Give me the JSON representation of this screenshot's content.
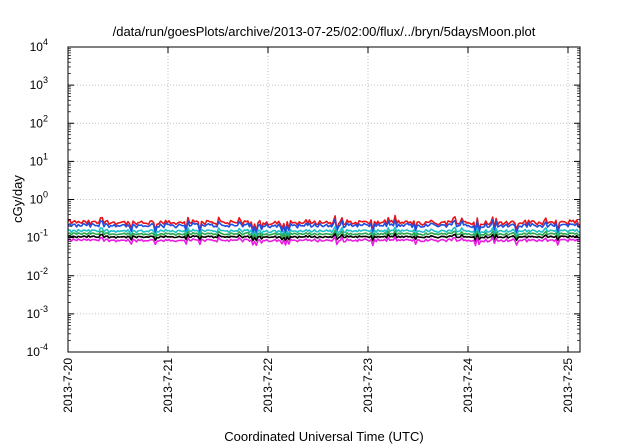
{
  "chart_data": {
    "type": "line",
    "title": "/data/run/goesPlots/archive/2013-07-25/02:00/flux/../bryn/5daysMoon.plot",
    "xlabel": "Coordinated Universal Time (UTC)",
    "ylabel": "cGy/day",
    "yscale": "log",
    "ylim": [
      0.0001,
      10000
    ],
    "xlim": [
      0,
      5.12
    ],
    "grid": true,
    "x_ticks": [
      {
        "value": 0,
        "label": "2013-7-20"
      },
      {
        "value": 1,
        "label": "2013-7-21"
      },
      {
        "value": 2,
        "label": "2013-7-22"
      },
      {
        "value": 3,
        "label": "2013-7-23"
      },
      {
        "value": 4,
        "label": "2013-7-24"
      },
      {
        "value": 5,
        "label": "2013-7-25"
      }
    ],
    "y_ticks": [
      {
        "value": 0.0001,
        "base": "10",
        "exp": "-4"
      },
      {
        "value": 0.001,
        "base": "10",
        "exp": "-3"
      },
      {
        "value": 0.01,
        "base": "10",
        "exp": "-2"
      },
      {
        "value": 0.1,
        "base": "10",
        "exp": "-1"
      },
      {
        "value": 1,
        "base": "10",
        "exp": "0"
      },
      {
        "value": 10,
        "base": "10",
        "exp": "1"
      },
      {
        "value": 100,
        "base": "10",
        "exp": "2"
      },
      {
        "value": 1000,
        "base": "10",
        "exp": "3"
      },
      {
        "value": 10000,
        "base": "10",
        "exp": "4"
      }
    ],
    "series": [
      {
        "color": "#e8141c",
        "level": 0.25,
        "amp": 0.32
      },
      {
        "color": "#1f4fe0",
        "level": 0.21,
        "amp": 0.3
      },
      {
        "color": "#1fc0c8",
        "level": 0.15,
        "amp": 0.2
      },
      {
        "color": "#2aa84a",
        "level": 0.125,
        "amp": 0.16
      },
      {
        "color": "#000000",
        "level": 0.105,
        "amp": 0.14
      },
      {
        "color": "#e81ee0",
        "level": 0.085,
        "amp": 0.18
      }
    ]
  }
}
